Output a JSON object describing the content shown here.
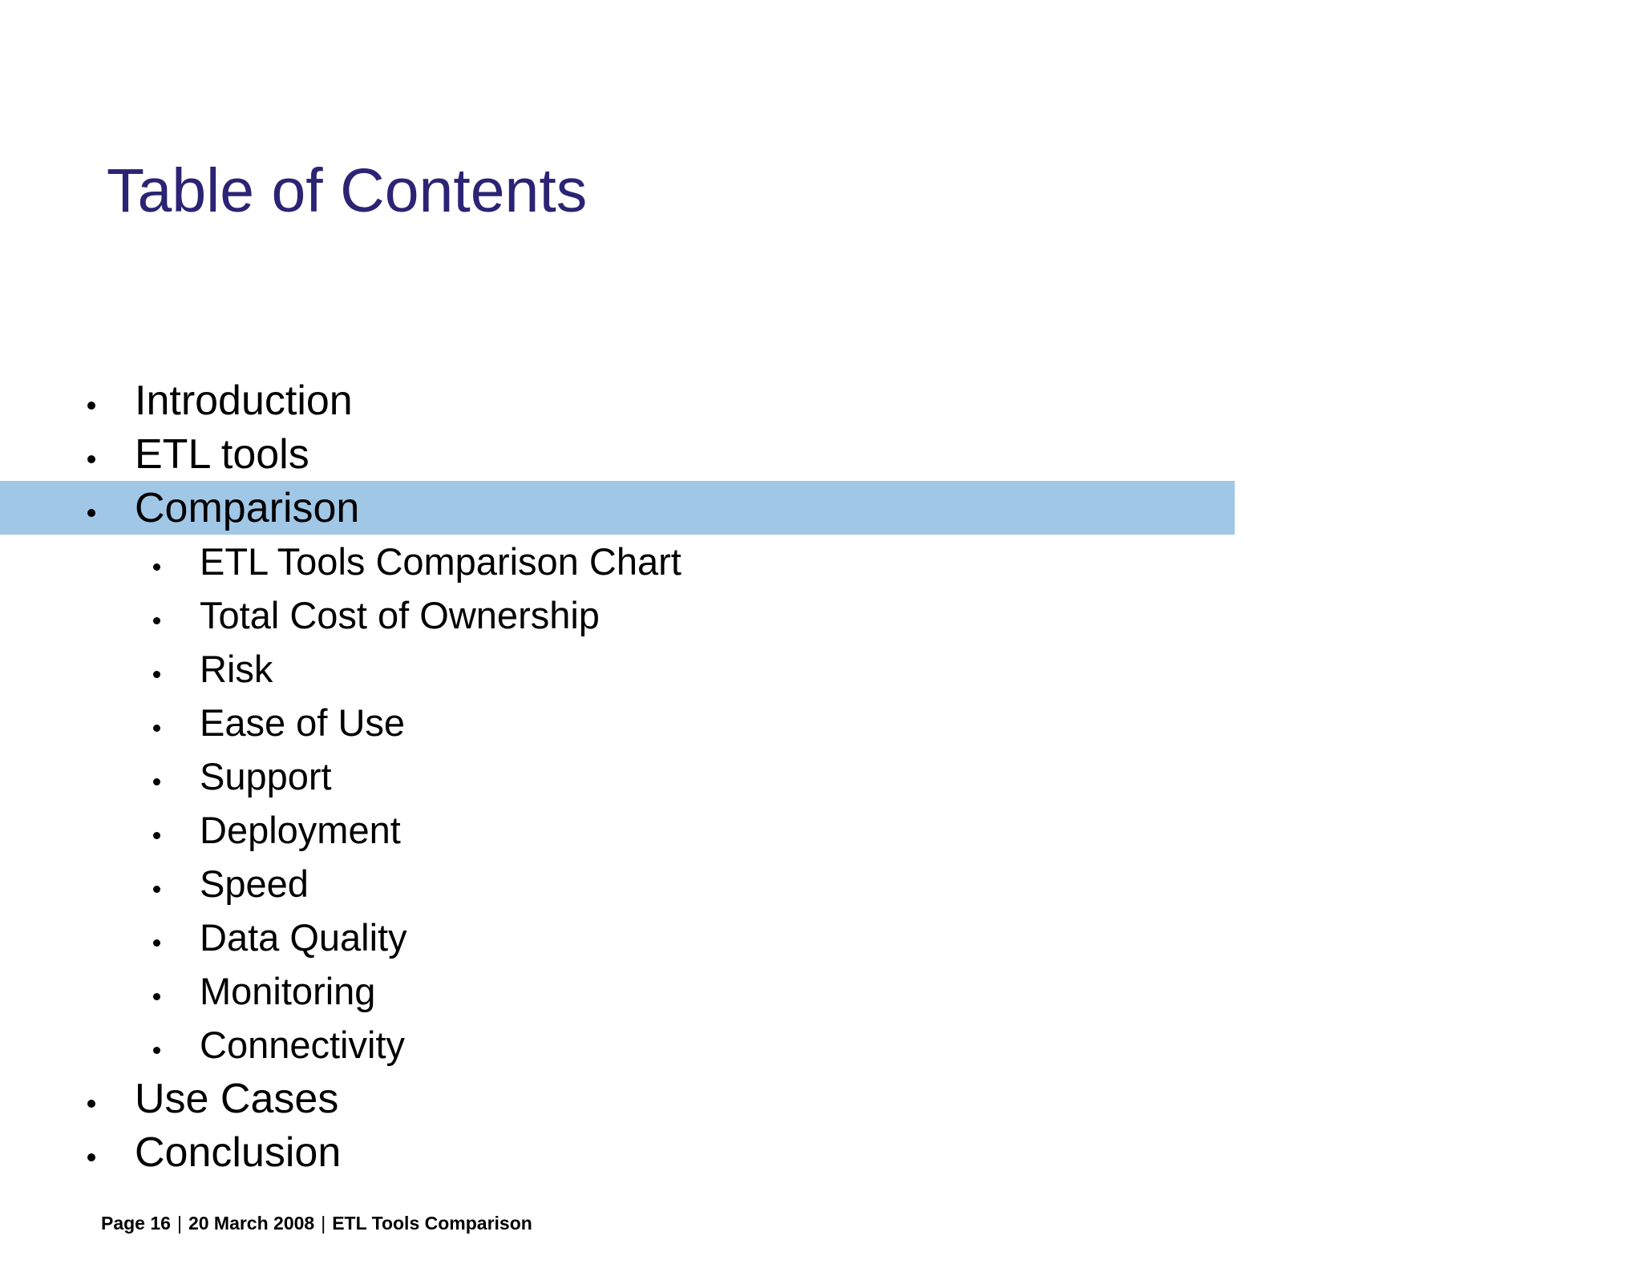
{
  "slide": {
    "title": "Table of Contents",
    "colors": {
      "title_text": "#2b2474",
      "body_text": "#000000",
      "highlight_bar": "#a1c7e7",
      "background": "#ffffff"
    }
  },
  "icons": {
    "bullet": "•"
  },
  "toc": {
    "items": [
      {
        "label": "Introduction",
        "level": 1,
        "highlighted": false
      },
      {
        "label": "ETL tools",
        "level": 1,
        "highlighted": false
      },
      {
        "label": "Comparison",
        "level": 1,
        "highlighted": true
      },
      {
        "label": "ETL Tools Comparison Chart",
        "level": 2,
        "highlighted": false
      },
      {
        "label": "Total Cost of Ownership",
        "level": 2,
        "highlighted": false
      },
      {
        "label": "Risk",
        "level": 2,
        "highlighted": false
      },
      {
        "label": "Ease of Use",
        "level": 2,
        "highlighted": false
      },
      {
        "label": "Support",
        "level": 2,
        "highlighted": false
      },
      {
        "label": "Deployment",
        "level": 2,
        "highlighted": false
      },
      {
        "label": "Speed",
        "level": 2,
        "highlighted": false
      },
      {
        "label": "Data Quality",
        "level": 2,
        "highlighted": false
      },
      {
        "label": "Monitoring",
        "level": 2,
        "highlighted": false
      },
      {
        "label": "Connectivity",
        "level": 2,
        "highlighted": false
      },
      {
        "label": "Use Cases",
        "level": 1,
        "highlighted": false
      },
      {
        "label": "Conclusion",
        "level": 1,
        "highlighted": false
      }
    ]
  },
  "footer": {
    "page_label": "Page 16",
    "separator": "|",
    "date": "20 March 2008",
    "document_title": "ETL Tools Comparison"
  }
}
